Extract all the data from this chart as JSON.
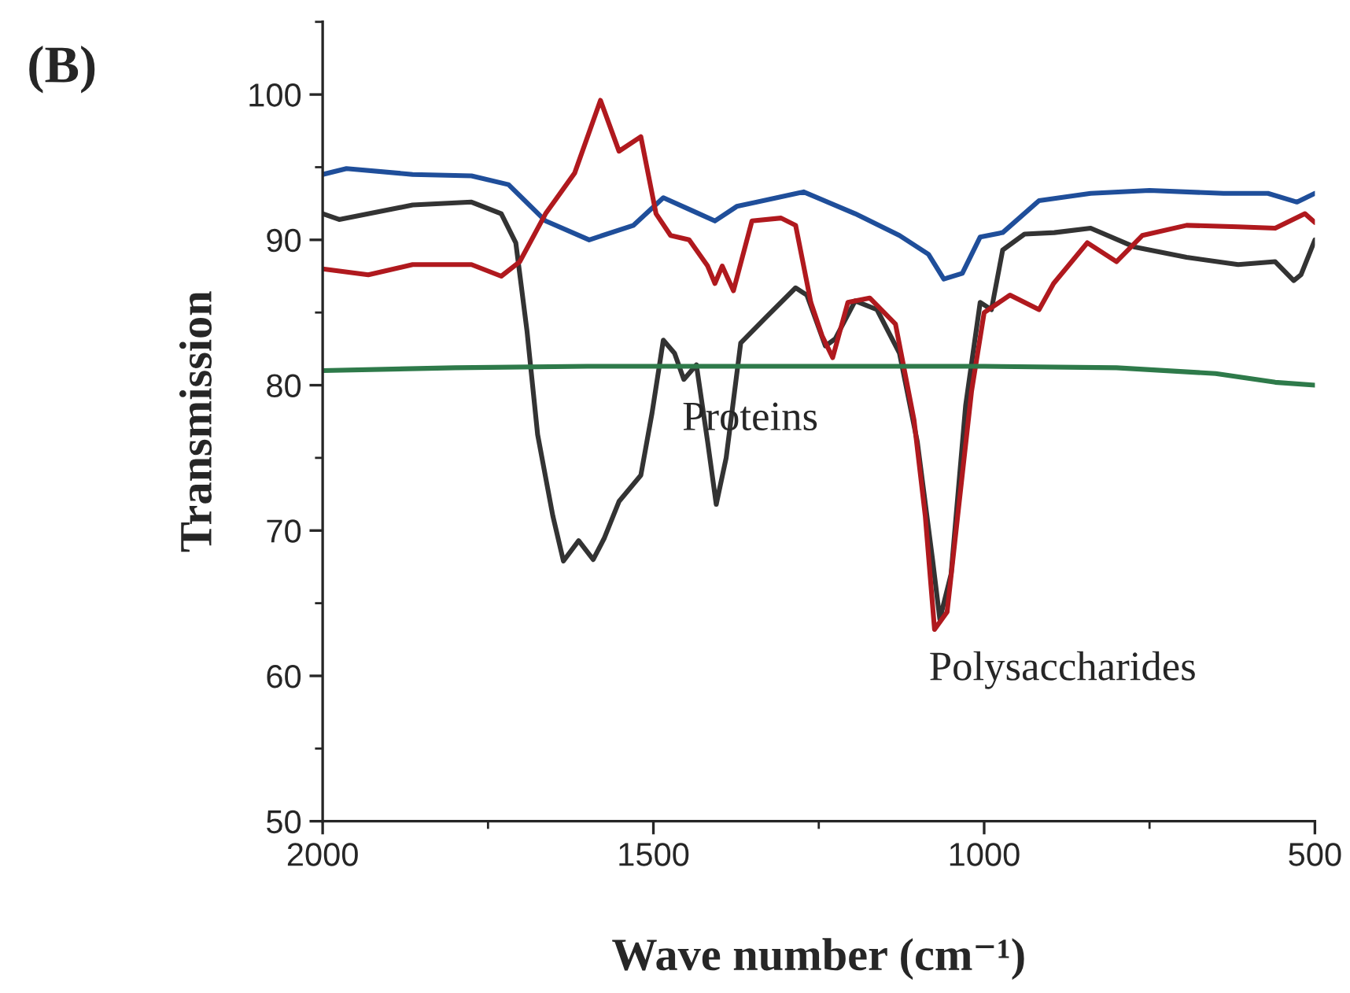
{
  "chart_data": {
    "type": "line",
    "title": "(B)",
    "xlabel": "Wave number (cm⁻¹)",
    "ylabel": "Transmission",
    "xlim": [
      2000,
      500
    ],
    "xticks": [
      2000,
      1500,
      1000,
      500
    ],
    "ylim": [
      50,
      105
    ],
    "yticks": [
      50,
      60,
      70,
      80,
      90,
      100
    ],
    "grid": false,
    "legend": false,
    "annotations": [
      {
        "text": "Proteins",
        "x": 1440,
        "y": 80.4
      },
      {
        "text": "Polysaccharides",
        "x": 1067,
        "y": 63.2
      }
    ],
    "series": [
      {
        "color": "#1f4e9a",
        "x": [
          2000,
          1964,
          1864,
          1775,
          1719,
          1663,
          1597,
          1530,
          1485,
          1441,
          1407,
          1374,
          1273,
          1195,
          1128,
          1084,
          1061,
          1033,
          1006,
          972,
          917,
          839,
          750,
          638,
          571,
          527,
          500
        ],
        "values": [
          94.5,
          94.9,
          94.5,
          94.4,
          93.8,
          91.3,
          90.0,
          91.0,
          92.9,
          92.0,
          91.3,
          92.3,
          93.3,
          91.8,
          90.3,
          89.0,
          87.3,
          87.7,
          90.2,
          90.5,
          92.7,
          93.2,
          93.4,
          93.2,
          93.2,
          92.6,
          93.2
        ]
      },
      {
        "color": "#333333",
        "x": [
          2000,
          1975,
          1864,
          1775,
          1730,
          1708,
          1691,
          1675,
          1652,
          1636,
          1613,
          1591,
          1574,
          1552,
          1519,
          1502,
          1485,
          1468,
          1454,
          1435,
          1418,
          1405,
          1390,
          1368,
          1329,
          1285,
          1268,
          1240,
          1225,
          1195,
          1162,
          1128,
          1101,
          1078,
          1067,
          1050,
          1028,
          1006,
          989,
          972,
          939,
          894,
          839,
          772,
          694,
          616,
          560,
          532,
          521,
          500
        ],
        "values": [
          91.8,
          91.4,
          92.4,
          92.6,
          91.8,
          89.8,
          83.7,
          76.6,
          71.0,
          67.9,
          69.3,
          68.0,
          69.5,
          72.0,
          73.8,
          78.1,
          83.1,
          82.2,
          80.4,
          81.4,
          76.1,
          71.8,
          75.0,
          82.9,
          84.7,
          86.7,
          86.2,
          82.7,
          83.2,
          85.8,
          85.2,
          82.2,
          76.1,
          68.0,
          63.9,
          67.0,
          78.6,
          85.7,
          85.2,
          89.3,
          90.4,
          90.5,
          90.8,
          89.5,
          88.8,
          88.3,
          88.5,
          87.2,
          87.6,
          90.0
        ]
      },
      {
        "color": "#b0191e",
        "x": [
          2000,
          1931,
          1864,
          1775,
          1730,
          1702,
          1663,
          1619,
          1580,
          1552,
          1519,
          1496,
          1474,
          1446,
          1418,
          1407,
          1396,
          1379,
          1351,
          1307,
          1285,
          1262,
          1245,
          1229,
          1206,
          1173,
          1134,
          1106,
          1089,
          1075,
          1056,
          1040,
          1019,
          1000,
          961,
          917,
          895,
          844,
          800,
          761,
          694,
          616,
          560,
          515,
          500
        ],
        "values": [
          88.0,
          87.6,
          88.3,
          88.3,
          87.5,
          88.5,
          91.8,
          94.6,
          99.6,
          96.1,
          97.1,
          91.8,
          90.3,
          90.0,
          88.2,
          87.0,
          88.2,
          86.5,
          91.3,
          91.5,
          91.0,
          85.7,
          83.4,
          81.9,
          85.7,
          86.0,
          84.2,
          77.6,
          71.0,
          63.2,
          64.4,
          71.0,
          79.6,
          85.0,
          86.2,
          85.2,
          87.0,
          89.8,
          88.5,
          90.3,
          91.0,
          90.9,
          90.8,
          91.8,
          91.2
        ]
      },
      {
        "color": "#2e7a4a",
        "x": [
          2000,
          1800,
          1600,
          1400,
          1200,
          1000,
          800,
          650,
          560,
          500
        ],
        "values": [
          81.0,
          81.2,
          81.3,
          81.3,
          81.3,
          81.3,
          81.2,
          80.8,
          80.2,
          80.0
        ]
      }
    ]
  }
}
